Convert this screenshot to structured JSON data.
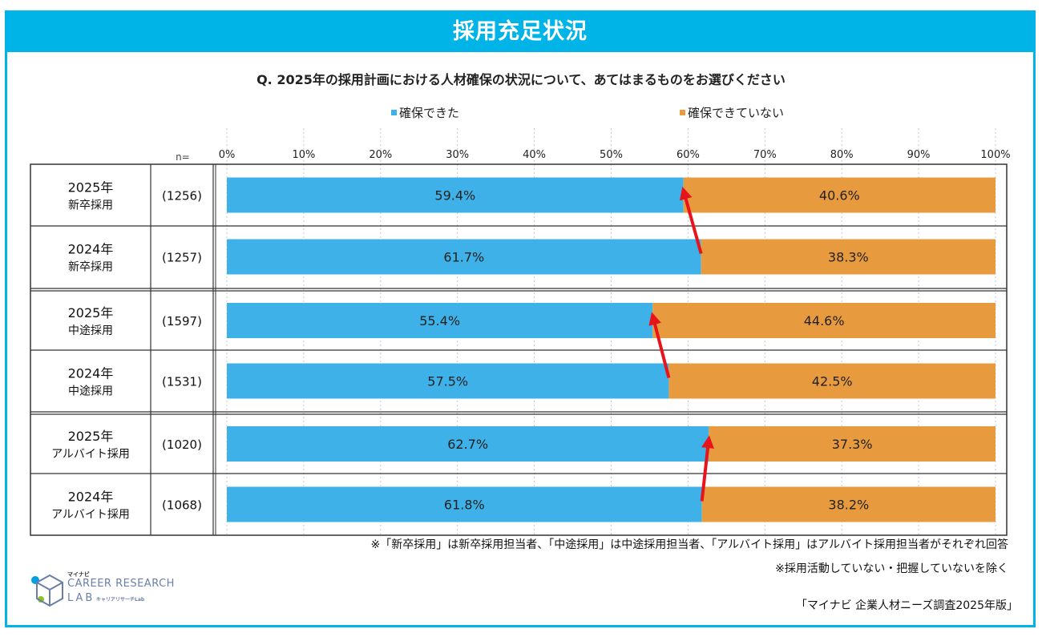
{
  "title": "採用充足状況",
  "question": "Q.  2025年の採用計画における人材確保の状況について、あてはまるものをお選びください",
  "colors": {
    "secured": "#3db1e8",
    "not_secured": "#e89b3e",
    "arrow": "#e8141c",
    "frame": "#00b4e8"
  },
  "chart_data": {
    "type": "bar",
    "orientation": "horizontal",
    "stacked": true,
    "legend": [
      "確保できた",
      "確保できていない"
    ],
    "legend_position": "top",
    "n_label": "n=",
    "xlim": [
      0,
      100
    ],
    "xticks": [
      "0%",
      "10%",
      "20%",
      "30%",
      "40%",
      "50%",
      "60%",
      "70%",
      "80%",
      "90%",
      "100%"
    ],
    "rows": [
      {
        "year": "2025年",
        "category": "新卒採用",
        "n": "(1256)",
        "secured": 59.4,
        "not_secured": 40.6,
        "secured_label": "59.4%",
        "not_secured_label": "40.6%"
      },
      {
        "year": "2024年",
        "category": "新卒採用",
        "n": "(1257)",
        "secured": 61.7,
        "not_secured": 38.3,
        "secured_label": "61.7%",
        "not_secured_label": "38.3%"
      },
      {
        "year": "2025年",
        "category": "中途採用",
        "n": "(1597)",
        "secured": 55.4,
        "not_secured": 44.6,
        "secured_label": "55.4%",
        "not_secured_label": "44.6%"
      },
      {
        "year": "2024年",
        "category": "中途採用",
        "n": "(1531)",
        "secured": 57.5,
        "not_secured": 42.5,
        "secured_label": "57.5%",
        "not_secured_label": "42.5%"
      },
      {
        "year": "2025年",
        "category": "アルバイト採用",
        "n": "(1020)",
        "secured": 62.7,
        "not_secured": 37.3,
        "secured_label": "62.7%",
        "not_secured_label": "37.3%"
      },
      {
        "year": "2024年",
        "category": "アルバイト採用",
        "n": "(1068)",
        "secured": 61.8,
        "not_secured": 38.2,
        "secured_label": "61.8%",
        "not_secured_label": "38.2%"
      }
    ]
  },
  "notes": [
    "※「新卒採用」は新卒採用担当者、「中途採用」は中途採用担当者、「アルバイト採用」はアルバイト採用担当者がそれぞれ回答",
    "※採用活動していない・把握していないを除く"
  ],
  "source": "「マイナビ 企業人材ニーズ調査2025年版」",
  "logo": {
    "pre": "マイナビ",
    "main": "CAREER RESEARCH",
    "lab": "LAB",
    "sub": "キャリアリサーチLab"
  }
}
